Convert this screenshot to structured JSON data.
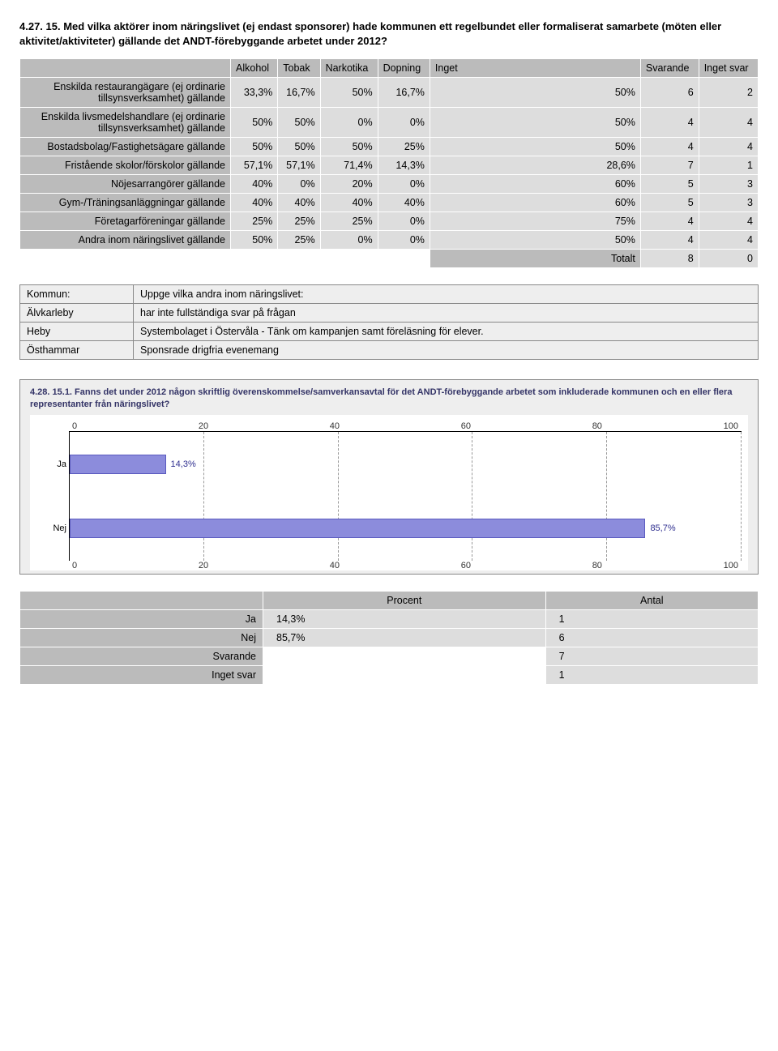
{
  "question": "4.27. 15. Med vilka aktörer inom näringslivet (ej endast sponsorer) hade kommunen ett regelbundet eller formaliserat samarbete (möten eller aktivitet/aktiviteter) gällande det ANDT-förebyggande arbetet under 2012?",
  "table": {
    "columns": [
      "Alkohol",
      "Tobak",
      "Narkotika",
      "Dopning",
      "Inget",
      "Svarande",
      "Inget svar"
    ],
    "rows": [
      {
        "label": "Enskilda restaurangägare (ej ordinarie tillsynsverksamhet) gällande",
        "cells": [
          "33,3%",
          "16,7%",
          "50%",
          "16,7%",
          "50%",
          "6",
          "2"
        ]
      },
      {
        "label": "Enskilda livsmedelshandlare (ej ordinarie tillsynsverksamhet) gällande",
        "cells": [
          "50%",
          "50%",
          "0%",
          "0%",
          "50%",
          "4",
          "4"
        ]
      },
      {
        "label": "Bostadsbolag/Fastighetsägare gällande",
        "cells": [
          "50%",
          "50%",
          "50%",
          "25%",
          "50%",
          "4",
          "4"
        ]
      },
      {
        "label": "Fristående skolor/förskolor gällande",
        "cells": [
          "57,1%",
          "57,1%",
          "71,4%",
          "14,3%",
          "28,6%",
          "7",
          "1"
        ]
      },
      {
        "label": "Nöjesarrangörer gällande",
        "cells": [
          "40%",
          "0%",
          "20%",
          "0%",
          "60%",
          "5",
          "3"
        ]
      },
      {
        "label": "Gym-/Träningsanläggningar gällande",
        "cells": [
          "40%",
          "40%",
          "40%",
          "40%",
          "60%",
          "5",
          "3"
        ]
      },
      {
        "label": "Företagarföreningar gällande",
        "cells": [
          "25%",
          "25%",
          "25%",
          "0%",
          "75%",
          "4",
          "4"
        ]
      },
      {
        "label": "Andra inom näringslivet gällande",
        "cells": [
          "50%",
          "25%",
          "0%",
          "0%",
          "50%",
          "4",
          "4"
        ]
      }
    ],
    "total": {
      "label": "Totalt",
      "cells": [
        "",
        "",
        "",
        "",
        "",
        "8",
        "0"
      ]
    }
  },
  "comments": {
    "headers": [
      "Kommun:",
      "Uppge vilka andra inom näringslivet:"
    ],
    "rows": [
      [
        "Älvkarleby",
        "har inte fullständiga svar på frågan"
      ],
      [
        "Heby",
        "Systembolaget i Östervåla - Tänk om kampanjen samt föreläsning för elever."
      ],
      [
        "Östhammar",
        "Sponsrade drigfria evenemang"
      ]
    ]
  },
  "chart": {
    "title": "4.28. 15.1. Fanns det under 2012 någon skriftlig överenskommelse/samverkansavtal för det ANDT-förebyggande arbetet som inkluderade kommunen och en eller flera representanter från näringslivet?",
    "ticks": [
      "0",
      "20",
      "40",
      "60",
      "80",
      "100"
    ],
    "bars": [
      {
        "category": "Ja",
        "value": 14.3,
        "label": "14,3%"
      },
      {
        "category": "Nej",
        "value": 85.7,
        "label": "85,7%"
      }
    ],
    "bar_color": "#8c8cdc",
    "bar_border": "#5a5abf",
    "label_color": "#303090",
    "background": "#ffffff",
    "outer_background": "#eeeeee"
  },
  "summary": {
    "columns": [
      "Procent",
      "Antal"
    ],
    "rows": [
      {
        "label": "Ja",
        "cells": [
          "14,3%",
          "1"
        ]
      },
      {
        "label": "Nej",
        "cells": [
          "85,7%",
          "6"
        ]
      },
      {
        "label": "Svarande",
        "cells": [
          "",
          "7"
        ]
      },
      {
        "label": "Inget svar",
        "cells": [
          "",
          "1"
        ]
      }
    ]
  }
}
